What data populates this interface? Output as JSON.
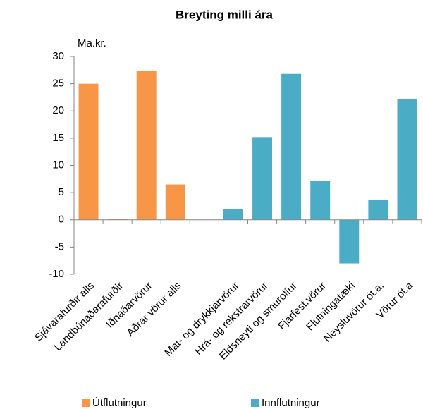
{
  "chart_data": {
    "type": "bar",
    "title": "Breyting milli ára",
    "y_label": "Ma.kr.",
    "categories": [
      "Sjávarafurðir alls",
      "Landbúnaðarafurðir",
      "Iðnaðarvörur",
      "Aðrar vörur alls",
      null,
      "Mat- og drykkjarvörur",
      "Hrá- og rekstrarvörur",
      "Eldsneyti og smurolíur",
      "Fjárfest.vörur",
      "Flutningatæki",
      "Neysluvörur ót.a.",
      "Vörur ót.a"
    ],
    "series": [
      {
        "name": "Útflutningur",
        "color": "#f79646",
        "values": [
          25,
          0.1,
          27.3,
          6.5,
          null,
          null,
          null,
          null,
          null,
          null,
          null,
          null
        ]
      },
      {
        "name": "Innflutningur",
        "color": "#4bacc6",
        "values": [
          null,
          null,
          null,
          null,
          null,
          2,
          15.2,
          26.8,
          7.2,
          -8,
          3.6,
          22.2
        ]
      }
    ],
    "ylim": [
      -10,
      30
    ],
    "yticks": [
      -10,
      -5,
      0,
      5,
      10,
      15,
      20,
      25,
      30
    ],
    "legend": "bottom"
  }
}
